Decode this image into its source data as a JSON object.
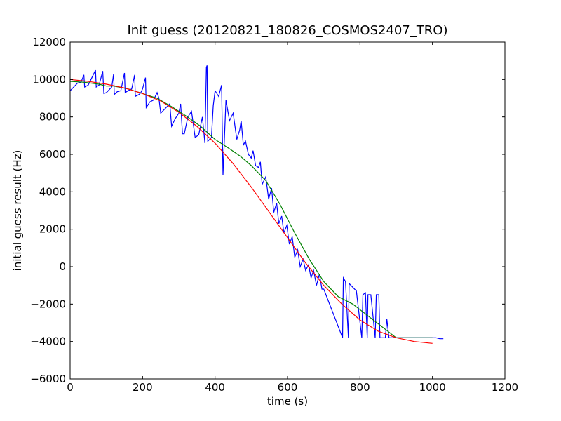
{
  "chart_data": {
    "type": "line",
    "title": "Init guess (20120821_180826_COSMOS2407_TRO)",
    "xlabel": "time (s)",
    "ylabel": "initial guess result (Hz)",
    "xlim": [
      0,
      1200
    ],
    "ylim": [
      -6000,
      12000
    ],
    "x_ticks": [
      0,
      200,
      400,
      600,
      800,
      1000,
      1200
    ],
    "y_ticks": [
      -6000,
      -4000,
      -2000,
      0,
      2000,
      4000,
      6000,
      8000,
      10000,
      12000
    ],
    "grid": false,
    "legend": "none",
    "series": [
      {
        "color": "#0000ff",
        "points": [
          [
            0,
            9400
          ],
          [
            10,
            9600
          ],
          [
            20,
            9800
          ],
          [
            30,
            9850
          ],
          [
            38,
            10250
          ],
          [
            40,
            9600
          ],
          [
            50,
            9700
          ],
          [
            60,
            10100
          ],
          [
            70,
            10500
          ],
          [
            72,
            9600
          ],
          [
            80,
            9700
          ],
          [
            90,
            10450
          ],
          [
            93,
            9250
          ],
          [
            100,
            9300
          ],
          [
            110,
            9500
          ],
          [
            115,
            9600
          ],
          [
            120,
            10300
          ],
          [
            122,
            9200
          ],
          [
            130,
            9350
          ],
          [
            140,
            9400
          ],
          [
            150,
            10350
          ],
          [
            152,
            9300
          ],
          [
            160,
            9400
          ],
          [
            170,
            9500
          ],
          [
            178,
            10250
          ],
          [
            180,
            9100
          ],
          [
            190,
            9200
          ],
          [
            195,
            9300
          ],
          [
            200,
            9500
          ],
          [
            208,
            10100
          ],
          [
            210,
            8500
          ],
          [
            220,
            8800
          ],
          [
            230,
            8900
          ],
          [
            240,
            9300
          ],
          [
            245,
            9000
          ],
          [
            250,
            8200
          ],
          [
            260,
            8400
          ],
          [
            270,
            8600
          ],
          [
            275,
            8700
          ],
          [
            280,
            7500
          ],
          [
            290,
            7900
          ],
          [
            300,
            8200
          ],
          [
            305,
            8700
          ],
          [
            310,
            7100
          ],
          [
            315,
            7100
          ],
          [
            325,
            8000
          ],
          [
            335,
            8300
          ],
          [
            345,
            6900
          ],
          [
            355,
            7050
          ],
          [
            365,
            8000
          ],
          [
            372,
            6600
          ],
          [
            376,
            10650
          ],
          [
            378,
            10750
          ],
          [
            380,
            6700
          ],
          [
            390,
            6900
          ],
          [
            395,
            8600
          ],
          [
            400,
            9400
          ],
          [
            410,
            9100
          ],
          [
            418,
            9700
          ],
          [
            422,
            4900
          ],
          [
            430,
            8900
          ],
          [
            440,
            7800
          ],
          [
            450,
            8200
          ],
          [
            460,
            6800
          ],
          [
            468,
            7300
          ],
          [
            472,
            7800
          ],
          [
            478,
            6500
          ],
          [
            484,
            6700
          ],
          [
            492,
            6000
          ],
          [
            500,
            5800
          ],
          [
            505,
            6200
          ],
          [
            512,
            5400
          ],
          [
            520,
            5300
          ],
          [
            525,
            5600
          ],
          [
            530,
            4400
          ],
          [
            540,
            4800
          ],
          [
            548,
            3600
          ],
          [
            556,
            4200
          ],
          [
            562,
            2900
          ],
          [
            570,
            3400
          ],
          [
            576,
            2300
          ],
          [
            584,
            2700
          ],
          [
            590,
            1800
          ],
          [
            598,
            2200
          ],
          [
            605,
            1200
          ],
          [
            613,
            1600
          ],
          [
            620,
            500
          ],
          [
            628,
            900
          ],
          [
            635,
            0
          ],
          [
            643,
            400
          ],
          [
            650,
            -200
          ],
          [
            658,
            100
          ],
          [
            665,
            -600
          ],
          [
            672,
            -200
          ],
          [
            680,
            -1000
          ],
          [
            688,
            -400
          ],
          [
            695,
            -1200
          ],
          [
            700,
            -1200
          ],
          [
            752,
            -3800
          ],
          [
            754,
            -600
          ],
          [
            760,
            -800
          ],
          [
            768,
            -3800
          ],
          [
            770,
            -900
          ],
          [
            780,
            -1100
          ],
          [
            790,
            -1300
          ],
          [
            805,
            -3800
          ],
          [
            808,
            -1500
          ],
          [
            815,
            -1400
          ],
          [
            820,
            -3800
          ],
          [
            822,
            -1500
          ],
          [
            830,
            -1500
          ],
          [
            842,
            -3800
          ],
          [
            845,
            -1500
          ],
          [
            852,
            -1500
          ],
          [
            855,
            -3800
          ],
          [
            870,
            -3800
          ],
          [
            874,
            -2800
          ],
          [
            880,
            -3800
          ],
          [
            900,
            -3800
          ],
          [
            950,
            -3800
          ],
          [
            1010,
            -3800
          ],
          [
            1020,
            -3850
          ],
          [
            1030,
            -3850
          ]
        ]
      },
      {
        "color": "#008000",
        "points": [
          [
            0,
            9900
          ],
          [
            40,
            9850
          ],
          [
            80,
            9750
          ],
          [
            100,
            9650
          ],
          [
            120,
            9650
          ],
          [
            160,
            9500
          ],
          [
            200,
            9250
          ],
          [
            240,
            9000
          ],
          [
            280,
            8550
          ],
          [
            320,
            8050
          ],
          [
            360,
            7500
          ],
          [
            400,
            6800
          ],
          [
            440,
            6300
          ],
          [
            470,
            5900
          ],
          [
            500,
            5400
          ],
          [
            540,
            4600
          ],
          [
            580,
            3300
          ],
          [
            620,
            1800
          ],
          [
            660,
            400
          ],
          [
            700,
            -800
          ],
          [
            740,
            -1600
          ],
          [
            780,
            -2000
          ],
          [
            820,
            -2600
          ],
          [
            860,
            -3200
          ],
          [
            900,
            -3800
          ],
          [
            1000,
            -3800
          ]
        ]
      },
      {
        "color": "#ff0000",
        "points": [
          [
            0,
            10000
          ],
          [
            50,
            9900
          ],
          [
            100,
            9750
          ],
          [
            150,
            9550
          ],
          [
            200,
            9250
          ],
          [
            250,
            8850
          ],
          [
            300,
            8250
          ],
          [
            350,
            7500
          ],
          [
            400,
            6600
          ],
          [
            450,
            5500
          ],
          [
            500,
            4250
          ],
          [
            550,
            2900
          ],
          [
            600,
            1550
          ],
          [
            650,
            200
          ],
          [
            700,
            -1000
          ],
          [
            750,
            -2000
          ],
          [
            800,
            -2850
          ],
          [
            850,
            -3450
          ],
          [
            900,
            -3800
          ],
          [
            950,
            -4000
          ],
          [
            1000,
            -4100
          ]
        ]
      }
    ]
  }
}
